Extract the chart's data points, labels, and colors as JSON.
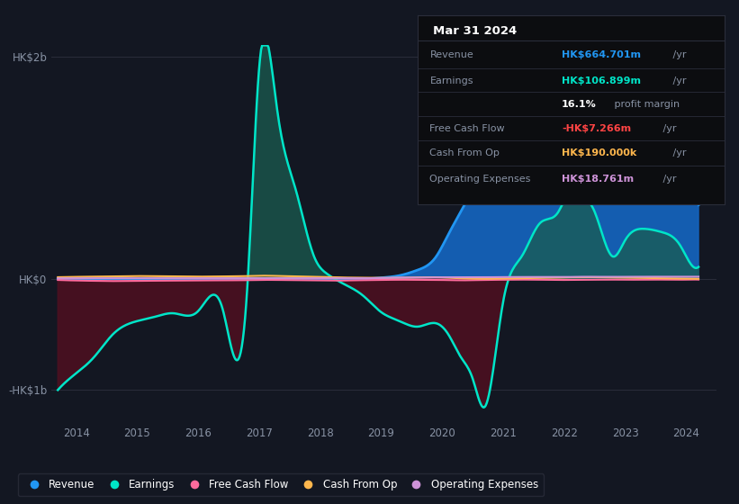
{
  "background_color": "#131722",
  "plot_bg_color": "#131722",
  "revenue_color": "#2196f3",
  "earnings_color": "#00e5c8",
  "free_cash_flow_color": "#ff6b9d",
  "cash_from_op_color": "#ffb74d",
  "operating_expenses_color": "#ce93d8",
  "revenue_fill": "#1565c0",
  "earnings_fill_pos": "#1a5c50",
  "earnings_fill_neg": "#4a1020",
  "info_box_bg": "#0a0a0a",
  "text_color": "#8892a4",
  "white_color": "#ffffff",
  "ylim_min": -1300,
  "ylim_max": 2100,
  "xlim_min": 2013.6,
  "xlim_max": 2024.5,
  "x_pts": [
    2013.7,
    2014.0,
    2014.3,
    2014.6,
    2015.0,
    2015.3,
    2015.6,
    2016.0,
    2016.4,
    2016.8,
    2017.0,
    2017.3,
    2017.6,
    2017.9,
    2018.1,
    2018.4,
    2018.7,
    2019.0,
    2019.3,
    2019.6,
    2019.9,
    2020.1,
    2020.3,
    2020.5,
    2020.7,
    2021.0,
    2021.3,
    2021.6,
    2021.9,
    2022.0,
    2022.2,
    2022.5,
    2022.8,
    2023.0,
    2023.3,
    2023.6,
    2023.9,
    2024.0,
    2024.2
  ],
  "revenue_y": [
    0,
    0,
    0,
    0,
    0,
    0,
    0,
    0,
    0,
    0,
    0,
    0,
    0,
    0,
    0,
    0,
    0,
    10,
    30,
    80,
    200,
    400,
    600,
    800,
    1000,
    1350,
    1420,
    1380,
    1300,
    1280,
    1350,
    1300,
    1230,
    1200,
    1250,
    1200,
    1100,
    980,
    665
  ],
  "earnings_y": [
    -1000,
    -850,
    -700,
    -500,
    -380,
    -340,
    -310,
    -290,
    -270,
    -120,
    1900,
    1500,
    800,
    200,
    50,
    -50,
    -150,
    -300,
    -380,
    -430,
    -400,
    -500,
    -700,
    -900,
    -1150,
    -200,
    200,
    500,
    600,
    700,
    750,
    600,
    200,
    350,
    450,
    420,
    300,
    200,
    107
  ],
  "fcf_y": [
    -10,
    -15,
    -18,
    -20,
    -18,
    -17,
    -16,
    -15,
    -13,
    -12,
    -10,
    -10,
    -12,
    -14,
    -16,
    -15,
    -12,
    -10,
    -8,
    -9,
    -10,
    -11,
    -13,
    -12,
    -10,
    -8,
    -7,
    -8,
    -10,
    -10,
    -9,
    -8,
    -7,
    -8,
    -7,
    -7,
    -8,
    -7,
    -7
  ],
  "cfop_y": [
    15,
    18,
    20,
    22,
    25,
    24,
    22,
    20,
    22,
    25,
    28,
    26,
    22,
    18,
    15,
    12,
    10,
    8,
    10,
    12,
    14,
    10,
    5,
    2,
    1,
    3,
    5,
    8,
    10,
    12,
    14,
    15,
    12,
    10,
    8,
    5,
    3,
    2,
    0.19
  ],
  "opex_y": [
    5,
    5,
    5,
    5,
    5,
    5,
    5,
    5,
    5,
    5,
    5,
    5,
    5,
    5,
    5,
    5,
    5,
    8,
    10,
    12,
    14,
    14,
    14,
    14,
    14,
    16,
    16,
    16,
    16,
    16,
    18,
    18,
    18,
    18,
    19,
    19,
    19,
    19,
    19
  ],
  "y_ticks": [
    -1000,
    0,
    2000
  ],
  "y_tick_labels": [
    "-HK$1b",
    "HK$0",
    "HK$2b"
  ],
  "x_ticks": [
    2014,
    2015,
    2016,
    2017,
    2018,
    2019,
    2020,
    2021,
    2022,
    2023,
    2024
  ],
  "info_title": "Mar 31 2024",
  "info_rows": [
    {
      "label": "Revenue",
      "value": "HK$664.701m",
      "value_color": "#2196f3",
      "suffix": " /yr"
    },
    {
      "label": "Earnings",
      "value": "HK$106.899m",
      "value_color": "#00e5c8",
      "suffix": " /yr"
    },
    {
      "label": "",
      "value": "16.1%",
      "value_color": "#ffffff",
      "suffix": " profit margin"
    },
    {
      "label": "Free Cash Flow",
      "value": "-HK$7.266m",
      "value_color": "#ff4444",
      "suffix": " /yr"
    },
    {
      "label": "Cash From Op",
      "value": "HK$190.000k",
      "value_color": "#ffb74d",
      "suffix": " /yr"
    },
    {
      "label": "Operating Expenses",
      "value": "HK$18.761m",
      "value_color": "#ce93d8",
      "suffix": " /yr"
    }
  ],
  "legend_items": [
    {
      "label": "Revenue",
      "color": "#2196f3"
    },
    {
      "label": "Earnings",
      "color": "#00e5c8"
    },
    {
      "label": "Free Cash Flow",
      "color": "#ff6b9d"
    },
    {
      "label": "Cash From Op",
      "color": "#ffb74d"
    },
    {
      "label": "Operating Expenses",
      "color": "#ce93d8"
    }
  ]
}
